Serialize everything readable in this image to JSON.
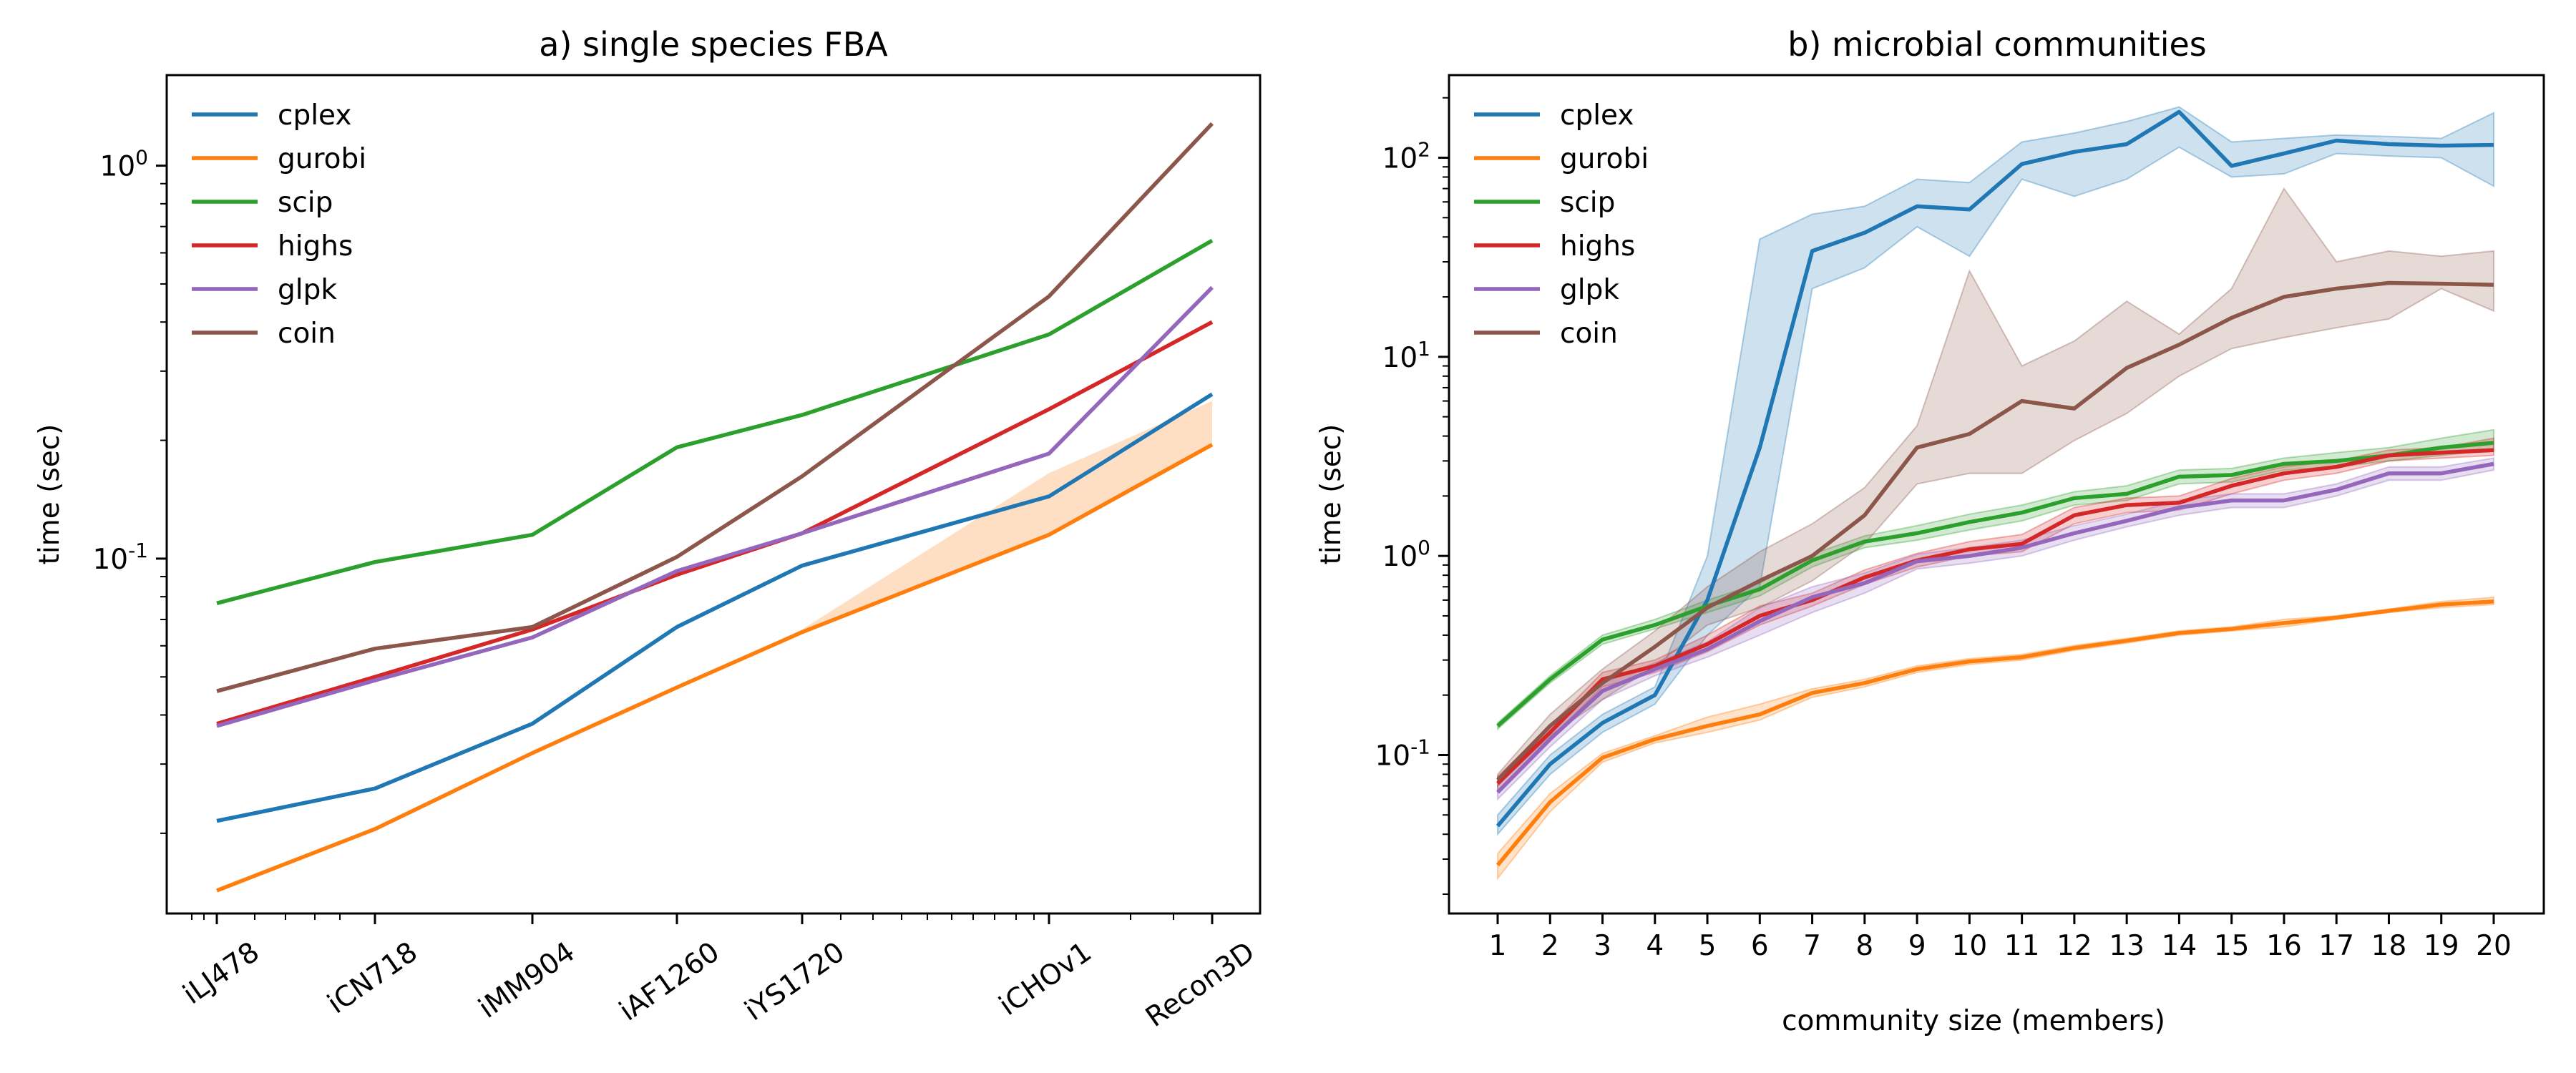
{
  "chart_data": [
    {
      "type": "line",
      "title": "a) single species FBA",
      "xlabel": "",
      "ylabel": "time (sec)",
      "yscale": "log",
      "ylim": [
        0.0125,
        1.7
      ],
      "categories": [
        "iLJ478",
        "iCN718",
        "iMM904",
        "iAF1260",
        "iYS1720",
        "iCHOv1",
        "Recon3D"
      ],
      "y_tick_labels": [
        "10^-1",
        "10^0"
      ],
      "legend_position": "top-left",
      "grid": false,
      "series": [
        {
          "name": "cplex",
          "color": "#1f77b4",
          "values": [
            0.0215,
            0.026,
            0.038,
            0.067,
            0.096,
            0.144,
            0.262
          ]
        },
        {
          "name": "gurobi",
          "color": "#ff7f0e",
          "values": [
            0.0143,
            0.0205,
            0.032,
            0.047,
            0.065,
            0.115,
            0.195
          ],
          "band_upper": [
            0.0143,
            0.0205,
            0.032,
            0.047,
            0.066,
            0.165,
            0.252
          ]
        },
        {
          "name": "scip",
          "color": "#2ca02c",
          "values": [
            0.077,
            0.098,
            0.115,
            0.192,
            0.232,
            0.372,
            0.645
          ]
        },
        {
          "name": "highs",
          "color": "#d62728",
          "values": [
            0.038,
            0.05,
            0.066,
            0.091,
            0.116,
            0.24,
            0.4
          ]
        },
        {
          "name": "glpk",
          "color": "#9467bd",
          "values": [
            0.0375,
            0.049,
            0.063,
            0.093,
            0.116,
            0.185,
            0.49
          ]
        },
        {
          "name": "coin",
          "color": "#8c564b",
          "values": [
            0.046,
            0.059,
            0.067,
            0.101,
            0.162,
            0.465,
            1.28
          ]
        }
      ]
    },
    {
      "type": "line",
      "title": "b) microbial communities",
      "xlabel": "community size (members)",
      "ylabel": "time (sec)",
      "yscale": "log",
      "ylim": [
        0.016,
        260
      ],
      "x": [
        1,
        2,
        3,
        4,
        5,
        6,
        7,
        8,
        9,
        10,
        11,
        12,
        13,
        14,
        15,
        16,
        17,
        18,
        19,
        20
      ],
      "y_tick_labels": [
        "10^-1",
        "10^0",
        "10^1",
        "10^2"
      ],
      "legend_position": "top-left",
      "grid": false,
      "series": [
        {
          "name": "cplex",
          "color": "#1f77b4",
          "values": [
            0.044,
            0.09,
            0.145,
            0.2,
            0.6,
            3.5,
            34,
            42,
            57,
            55,
            93,
            107,
            117,
            170,
            91,
            105,
            122,
            117,
            115,
            116
          ],
          "band_low": [
            0.04,
            0.08,
            0.13,
            0.18,
            0.4,
            0.7,
            22,
            28,
            45,
            32,
            78,
            64,
            78,
            113,
            80,
            83,
            105,
            102,
            100,
            72
          ],
          "band_high": [
            0.05,
            0.1,
            0.16,
            0.22,
            1.0,
            39,
            52,
            57,
            78,
            75,
            120,
            133,
            152,
            180,
            120,
            125,
            130,
            128,
            125,
            168
          ]
        },
        {
          "name": "gurobi",
          "color": "#ff7f0e",
          "values": [
            0.028,
            0.058,
            0.097,
            0.12,
            0.14,
            0.16,
            0.205,
            0.23,
            0.27,
            0.295,
            0.31,
            0.345,
            0.375,
            0.41,
            0.43,
            0.46,
            0.49,
            0.53,
            0.57,
            0.59
          ],
          "band_low": [
            0.024,
            0.052,
            0.092,
            0.115,
            0.13,
            0.15,
            0.195,
            0.22,
            0.26,
            0.285,
            0.3,
            0.335,
            0.365,
            0.4,
            0.42,
            0.44,
            0.48,
            0.52,
            0.55,
            0.57
          ],
          "band_high": [
            0.032,
            0.064,
            0.102,
            0.125,
            0.155,
            0.18,
            0.215,
            0.24,
            0.28,
            0.305,
            0.32,
            0.355,
            0.385,
            0.42,
            0.44,
            0.48,
            0.5,
            0.54,
            0.59,
            0.62
          ]
        },
        {
          "name": "scip",
          "color": "#2ca02c",
          "values": [
            0.14,
            0.24,
            0.38,
            0.45,
            0.56,
            0.68,
            0.95,
            1.18,
            1.3,
            1.48,
            1.65,
            1.95,
            2.05,
            2.5,
            2.55,
            2.9,
            3.0,
            3.2,
            3.5,
            3.7
          ],
          "band_low": [
            0.135,
            0.23,
            0.36,
            0.43,
            0.52,
            0.63,
            0.88,
            1.1,
            1.2,
            1.35,
            1.5,
            1.8,
            1.9,
            2.3,
            2.35,
            2.7,
            2.8,
            3.0,
            3.2,
            3.4
          ],
          "band_high": [
            0.145,
            0.25,
            0.4,
            0.48,
            0.6,
            0.73,
            1.02,
            1.26,
            1.42,
            1.62,
            1.8,
            2.1,
            2.25,
            2.7,
            2.75,
            3.1,
            3.3,
            3.5,
            3.9,
            4.3
          ]
        },
        {
          "name": "highs",
          "color": "#d62728",
          "values": [
            0.072,
            0.13,
            0.24,
            0.28,
            0.36,
            0.5,
            0.6,
            0.78,
            0.95,
            1.08,
            1.15,
            1.6,
            1.8,
            1.85,
            2.25,
            2.6,
            2.8,
            3.2,
            3.3,
            3.4
          ],
          "band_low": [
            0.066,
            0.12,
            0.22,
            0.26,
            0.33,
            0.45,
            0.56,
            0.72,
            0.88,
            1.0,
            1.05,
            1.45,
            1.65,
            1.7,
            2.05,
            2.4,
            2.6,
            3.0,
            3.1,
            3.2
          ],
          "band_high": [
            0.078,
            0.14,
            0.26,
            0.3,
            0.4,
            0.56,
            0.65,
            0.85,
            1.03,
            1.18,
            1.28,
            1.75,
            1.95,
            2.0,
            2.45,
            2.8,
            3.0,
            3.4,
            3.5,
            3.9
          ]
        },
        {
          "name": "glpk",
          "color": "#9467bd",
          "values": [
            0.065,
            0.12,
            0.21,
            0.27,
            0.34,
            0.47,
            0.62,
            0.73,
            0.94,
            1.0,
            1.1,
            1.3,
            1.5,
            1.75,
            1.9,
            1.9,
            2.15,
            2.6,
            2.6,
            2.9
          ],
          "band_low": [
            0.06,
            0.11,
            0.19,
            0.25,
            0.31,
            0.4,
            0.52,
            0.65,
            0.86,
            0.92,
            1.0,
            1.2,
            1.4,
            1.6,
            1.75,
            1.75,
            2.0,
            2.4,
            2.4,
            2.7
          ],
          "band_high": [
            0.07,
            0.13,
            0.23,
            0.29,
            0.37,
            0.55,
            0.7,
            0.82,
            1.02,
            1.1,
            1.2,
            1.42,
            1.62,
            1.9,
            2.05,
            2.05,
            2.3,
            2.8,
            2.8,
            3.1
          ]
        },
        {
          "name": "coin",
          "color": "#8c564b",
          "values": [
            0.075,
            0.14,
            0.23,
            0.35,
            0.55,
            0.75,
            1.0,
            1.6,
            3.5,
            4.1,
            6.0,
            5.5,
            8.8,
            11.5,
            15.7,
            20,
            22,
            23.5,
            23.3,
            23
          ],
          "band_low": [
            0.07,
            0.125,
            0.19,
            0.28,
            0.45,
            0.55,
            0.75,
            1.15,
            2.3,
            2.6,
            2.6,
            3.8,
            5.2,
            8.0,
            11,
            12.5,
            14,
            15.5,
            22,
            17
          ],
          "band_high": [
            0.08,
            0.16,
            0.27,
            0.42,
            0.7,
            1.05,
            1.45,
            2.2,
            4.5,
            27,
            9,
            12,
            19,
            13,
            22,
            70,
            30,
            34,
            32,
            34
          ]
        }
      ]
    }
  ]
}
